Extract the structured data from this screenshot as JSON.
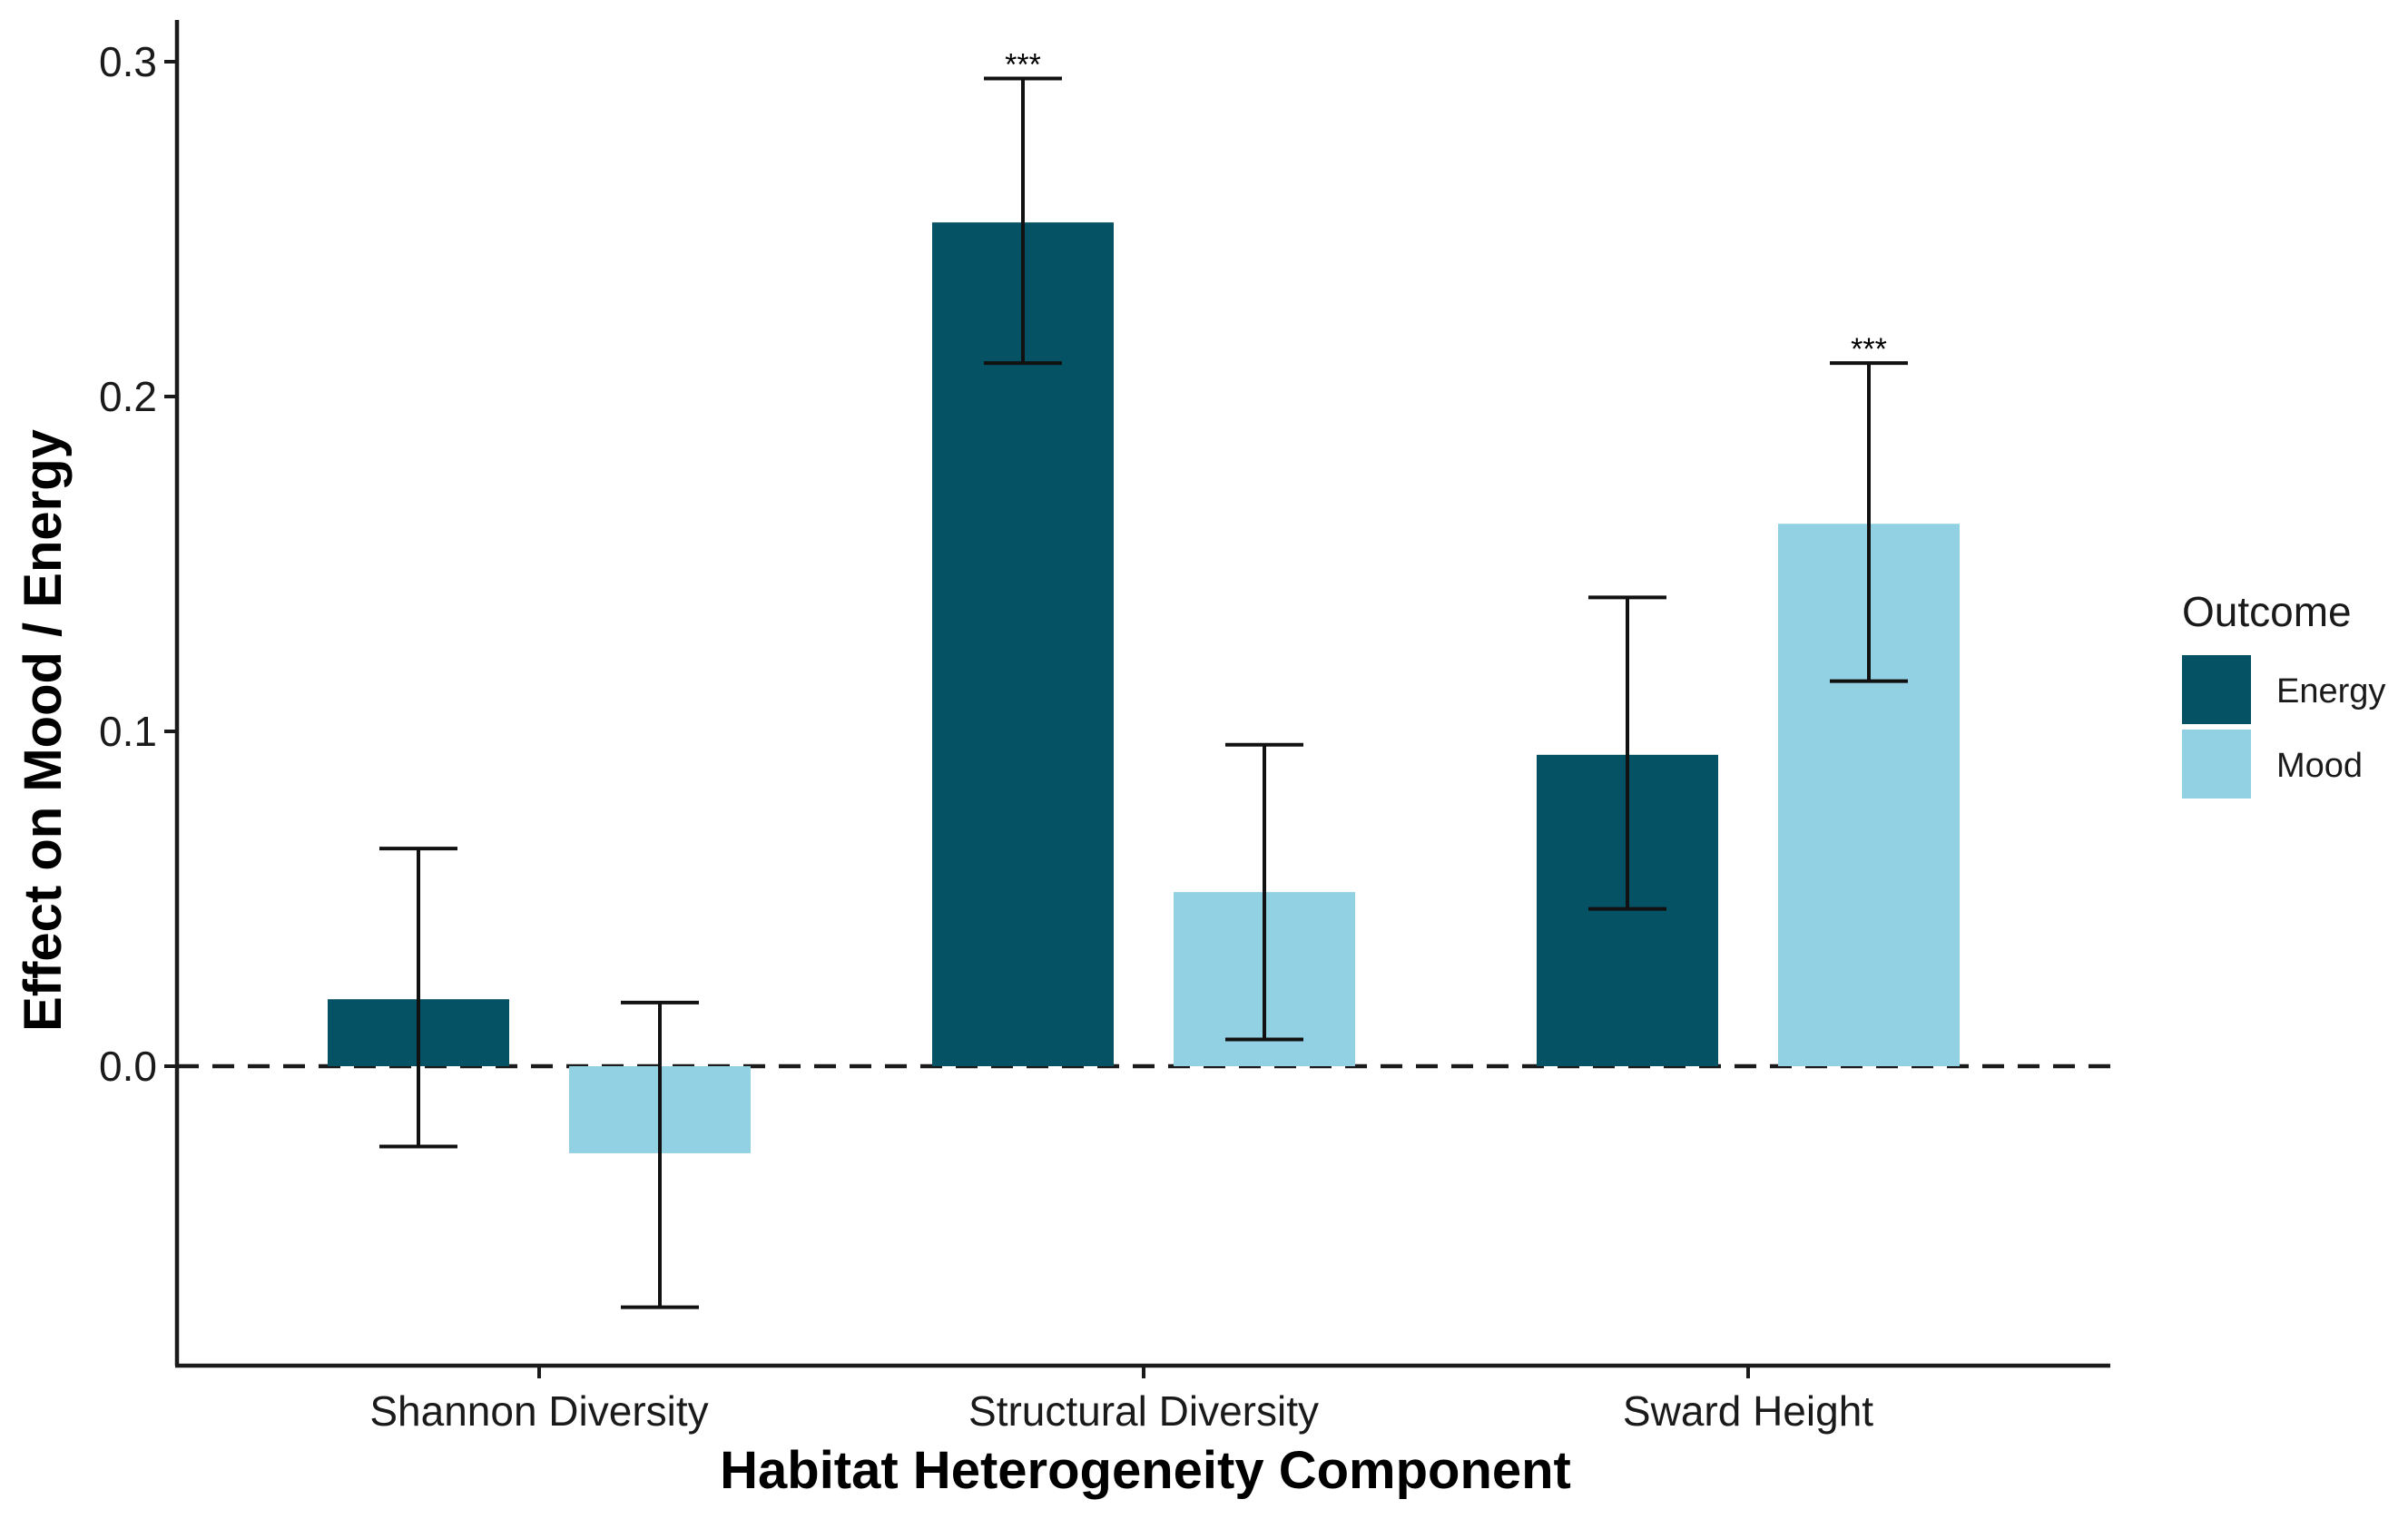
{
  "chart_data": {
    "type": "bar",
    "title": "",
    "xlabel": "Habitat Heterogeneity Component",
    "ylabel": "Effect on Mood / Energy",
    "ylim": [
      -0.09,
      0.31
    ],
    "yticks": [
      0.0,
      0.1,
      0.2,
      0.3
    ],
    "ytick_labels": [
      "0.0",
      "0.1",
      "0.2",
      "0.3"
    ],
    "categories": [
      "Shannon Diversity",
      "Structural Diversity",
      "Sward Height"
    ],
    "reference_line": 0.0,
    "legend": {
      "title": "Outcome",
      "position": "right"
    },
    "series": [
      {
        "name": "Energy",
        "color": "#045264",
        "values": [
          0.02,
          0.252,
          0.093
        ],
        "ci_low": [
          -0.024,
          0.21,
          0.047
        ],
        "ci_high": [
          0.065,
          0.295,
          0.14
        ],
        "significance": [
          "",
          "***",
          ""
        ]
      },
      {
        "name": "Mood",
        "color": "#92d1e3",
        "values": [
          -0.026,
          0.052,
          0.162
        ],
        "ci_low": [
          -0.072,
          0.008,
          0.115
        ],
        "ci_high": [
          0.019,
          0.096,
          0.21
        ],
        "significance": [
          "",
          "",
          "***"
        ]
      }
    ]
  }
}
